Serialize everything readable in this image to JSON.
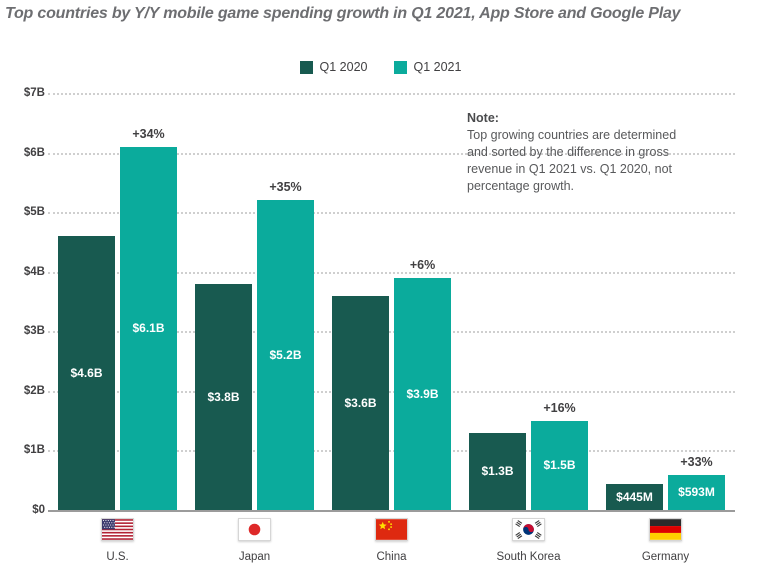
{
  "title": "Top countries by Y/Y mobile game spending growth in Q1 2021, App Store and Google Play",
  "note": {
    "heading": "Note:",
    "body": "Top growing countries are determined and sorted by the difference in gross revenue in Q1 2021 vs. Q1 2020, not percentage growth."
  },
  "colors": {
    "q1_2020_bar": "#185A50",
    "q1_2021_bar": "#0BAB9C",
    "title_text": "#6D6E71",
    "axis_text": "#414042",
    "note_text": "#58595B",
    "gridline": "#CFCFCF",
    "baseline": "#9B9B9B"
  },
  "chart_data": {
    "type": "bar",
    "title": "Top countries by Y/Y mobile game spending growth in Q1 2021, App Store and Google Play",
    "categories": [
      "U.S.",
      "Japan",
      "China",
      "South Korea",
      "Germany"
    ],
    "series": [
      {
        "name": "Q1 2020",
        "color": "#185A50",
        "values_usd_billions": [
          4.6,
          3.8,
          3.6,
          1.3,
          0.445
        ],
        "bar_labels": [
          "$4.6B",
          "$3.8B",
          "$3.6B",
          "$1.3B",
          "$445M"
        ]
      },
      {
        "name": "Q1 2021",
        "color": "#0BAB9C",
        "values_usd_billions": [
          6.1,
          5.2,
          3.9,
          1.5,
          0.593
        ],
        "bar_labels": [
          "$6.1B",
          "$5.2B",
          "$3.9B",
          "$1.5B",
          "$593M"
        ]
      }
    ],
    "growth_labels": [
      "+34%",
      "+35%",
      "+6%",
      "+16%",
      "+33%"
    ],
    "y_axis": {
      "ticks": [
        "$7B",
        "$6B",
        "$5B",
        "$4B",
        "$3B",
        "$2B",
        "$1B",
        "$0"
      ],
      "min": 0,
      "max": 7,
      "unit": "USD billions"
    },
    "grid": "horizontal dotted",
    "legend_position": "top center",
    "flags": [
      "us-flag-icon",
      "japan-flag-icon",
      "china-flag-icon",
      "south-korea-flag-icon",
      "germany-flag-icon"
    ]
  }
}
